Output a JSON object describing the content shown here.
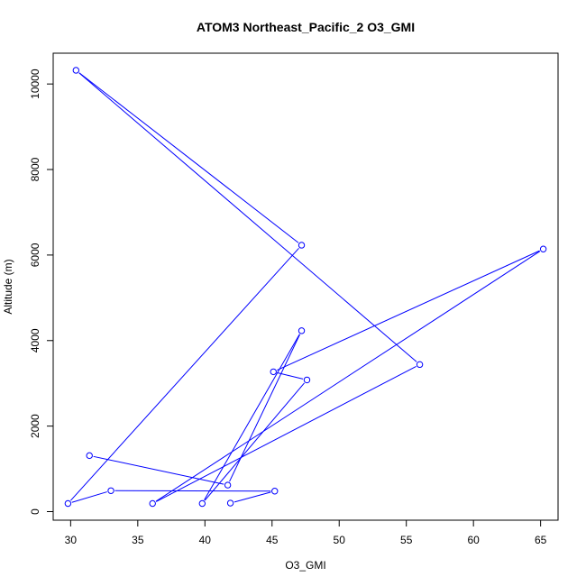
{
  "chart_data": {
    "type": "line",
    "title": "ATOM3 Northeast_Pacific_2 O3_GMI",
    "xlabel": "O3_GMI",
    "ylabel": "Altitude (m)",
    "xlim": [
      28.7,
      66.3
    ],
    "ylim": [
      -200,
      10720
    ],
    "x_ticks": [
      30,
      35,
      40,
      45,
      50,
      55,
      60,
      65
    ],
    "y_ticks": [
      0,
      2000,
      4000,
      6000,
      8000,
      10000
    ],
    "x_tick_labels": [
      "30",
      "35",
      "40",
      "45",
      "50",
      "55",
      "60",
      "65"
    ],
    "y_tick_labels": [
      "0",
      "2000",
      "4000",
      "6000",
      "8000",
      "10000"
    ],
    "grid": false,
    "markers": "open-circle",
    "series": [
      {
        "color": "#0000ff",
        "points": [
          {
            "x": 41.9,
            "y": 200
          },
          {
            "x": 45.2,
            "y": 480
          },
          {
            "x": 33.0,
            "y": 490
          },
          {
            "x": 29.8,
            "y": 190
          },
          {
            "x": 47.2,
            "y": 6230
          },
          {
            "x": 30.4,
            "y": 10320
          },
          {
            "x": 56.0,
            "y": 3440
          },
          {
            "x": 36.1,
            "y": 190
          },
          {
            "x": 65.2,
            "y": 6140
          },
          {
            "x": 45.1,
            "y": 3270
          },
          {
            "x": 47.6,
            "y": 3080
          },
          {
            "x": 39.8,
            "y": 190
          },
          {
            "x": 47.2,
            "y": 4230
          },
          {
            "x": 41.7,
            "y": 620
          },
          {
            "x": 31.4,
            "y": 1310
          }
        ]
      }
    ]
  }
}
